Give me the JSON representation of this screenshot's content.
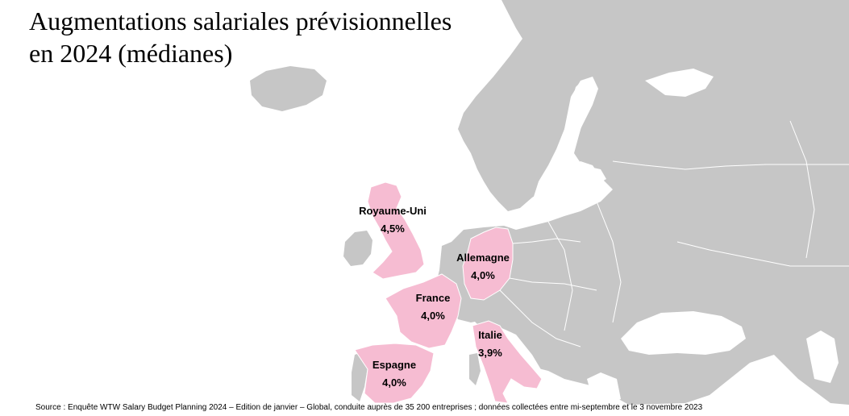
{
  "title_line1": "Augmentations salariales prévisionnelles",
  "title_line2": "en 2024 (médianes)",
  "colors": {
    "land": "#c6c6c6",
    "highlight": "#f6bcd2",
    "border": "#ffffff",
    "sea": "#ffffff"
  },
  "countries": [
    {
      "name": "Royaume-Uni",
      "value": "4,5%"
    },
    {
      "name": "Allemagne",
      "value": "4,0%"
    },
    {
      "name": "France",
      "value": "4,0%"
    },
    {
      "name": "Italie",
      "value": "3,9%"
    },
    {
      "name": "Espagne",
      "value": "4,0%"
    }
  ],
  "source": "Source : Enquête WTW Salary Budget Planning 2024 – Edition de janvier – Global, conduite auprès de 35 200 entreprises ; données collectées entre mi-septembre et le 3 novembre 2023"
}
